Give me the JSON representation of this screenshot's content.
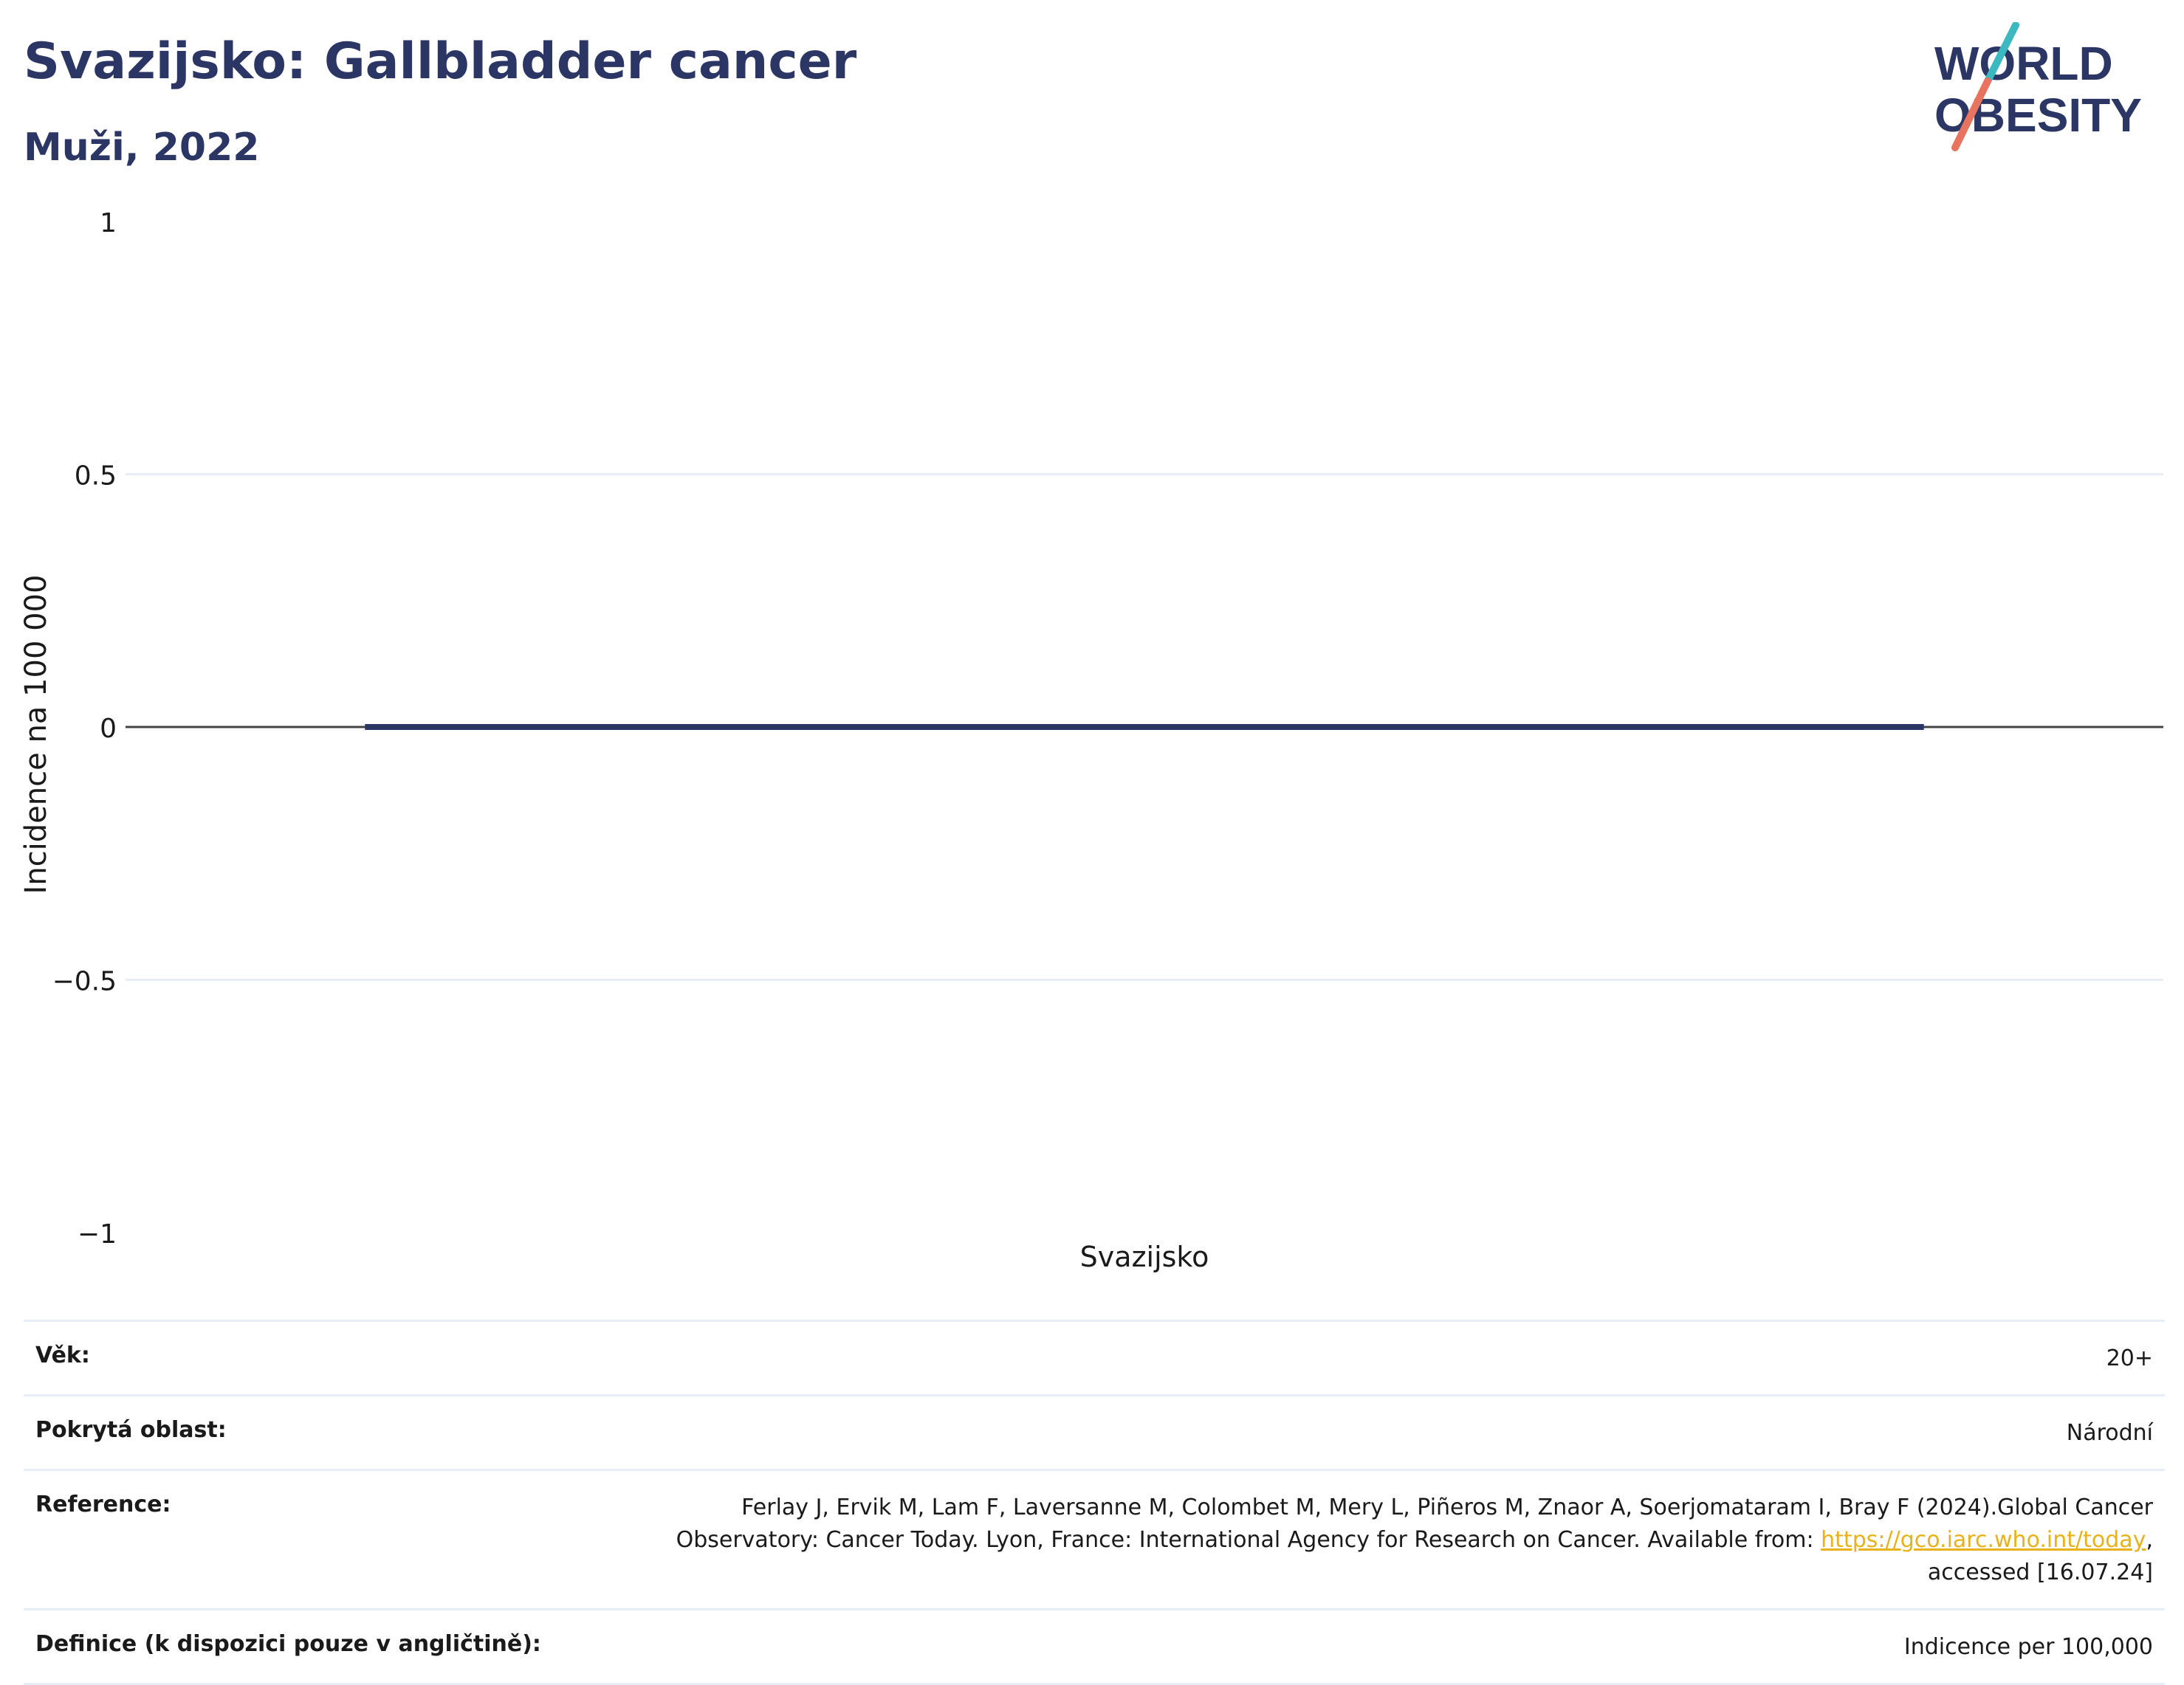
{
  "header": {
    "title": "Svazijsko: Gallbladder cancer",
    "subtitle": "Muži, 2022"
  },
  "logo": {
    "line1": "WORLD",
    "line2": "OBESITY",
    "colors": {
      "text": "#2b3664",
      "slash_top": "#3bb8c0",
      "slash_bottom": "#e8735e"
    }
  },
  "chart_data": {
    "type": "bar",
    "categories": [
      "Svazijsko"
    ],
    "series": [
      {
        "values": [
          0
        ]
      }
    ],
    "ylabel": "Incidence na 100 000",
    "xlabel": "",
    "ylim": [
      -1,
      1
    ],
    "yticks": [
      1,
      0.5,
      0,
      -0.5,
      -1
    ],
    "ytick_labels": [
      "1",
      "0.5",
      "0",
      "−0.5",
      "−1"
    ],
    "grid": true,
    "colors": {
      "bar": "#2b3664",
      "grid": "#e8eef5",
      "zeroline": "#444444"
    }
  },
  "info": {
    "rows": [
      {
        "label": "Věk:",
        "value": "20+"
      },
      {
        "label": "Pokrytá oblast:",
        "value": "Národní"
      },
      {
        "label": "Reference:",
        "value_part1": "Ferlay J, Ervik M, Lam F, Laversanne M, Colombet M, Mery L, Piñeros M, Znaor A, Soerjomataram I, Bray F (2024).Global Cancer Observatory: Cancer Today. Lyon, France: International Agency for Research on Cancer. Available from: ",
        "link": "https://gco.iarc.who.int/today",
        "value_part2": ", accessed [16.07.24]"
      },
      {
        "label": "Definice (k dispozici pouze v angličtině):",
        "value": "Indicence per 100,000"
      }
    ]
  }
}
